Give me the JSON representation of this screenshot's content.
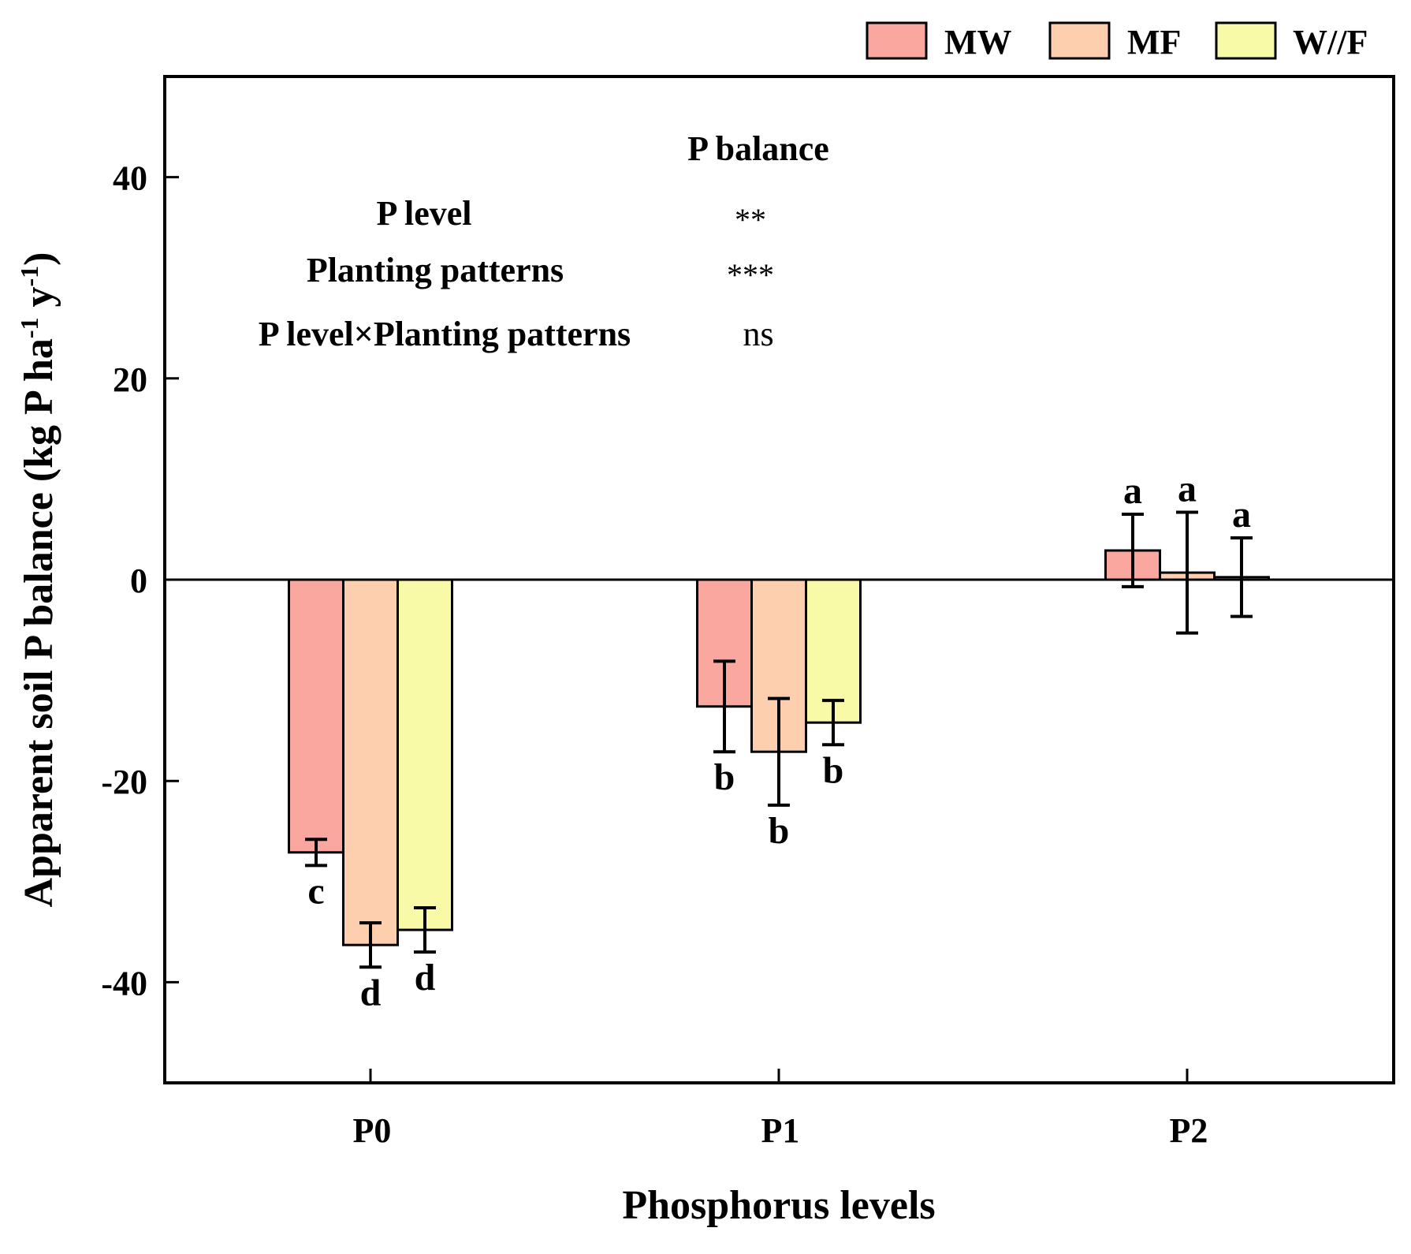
{
  "chart_data": {
    "type": "bar",
    "title": "",
    "xlabel": "Phosphorus levels",
    "ylabel": {
      "main": "Apparent soil P balance (kg P ha",
      "sup1": "-1",
      "mid": " y",
      "sup2": "-1",
      "end": ")"
    },
    "categories": [
      "P0",
      "P1",
      "P2"
    ],
    "ylim": [
      -50,
      50
    ],
    "yticks": [
      -40,
      -20,
      0,
      20,
      40
    ],
    "series": [
      {
        "name": "MW",
        "color": "#FAA7A0",
        "values": [
          -27.1,
          -12.6,
          2.9
        ],
        "errors": [
          1.3,
          4.5,
          3.6
        ],
        "letters": [
          "c",
          "b",
          "a"
        ]
      },
      {
        "name": "MF",
        "color": "#FDCFAE",
        "values": [
          -36.3,
          -17.1,
          0.7
        ],
        "errors": [
          2.2,
          5.3,
          6.0
        ],
        "letters": [
          "d",
          "b",
          "a"
        ]
      },
      {
        "name": "W//F",
        "color": "#F8FAA8",
        "values": [
          -34.8,
          -14.2,
          0.25
        ],
        "errors": [
          2.2,
          2.2,
          3.9
        ],
        "letters": [
          "d",
          "b",
          "a"
        ]
      }
    ],
    "annotation": {
      "header": "P balance",
      "rows": [
        {
          "factor": "P level",
          "significance": "**"
        },
        {
          "factor": "Planting patterns",
          "significance": "***"
        },
        {
          "factor": "P level×Planting patterns",
          "significance": "ns"
        }
      ]
    },
    "legend": {
      "position": "top-right outside"
    }
  }
}
